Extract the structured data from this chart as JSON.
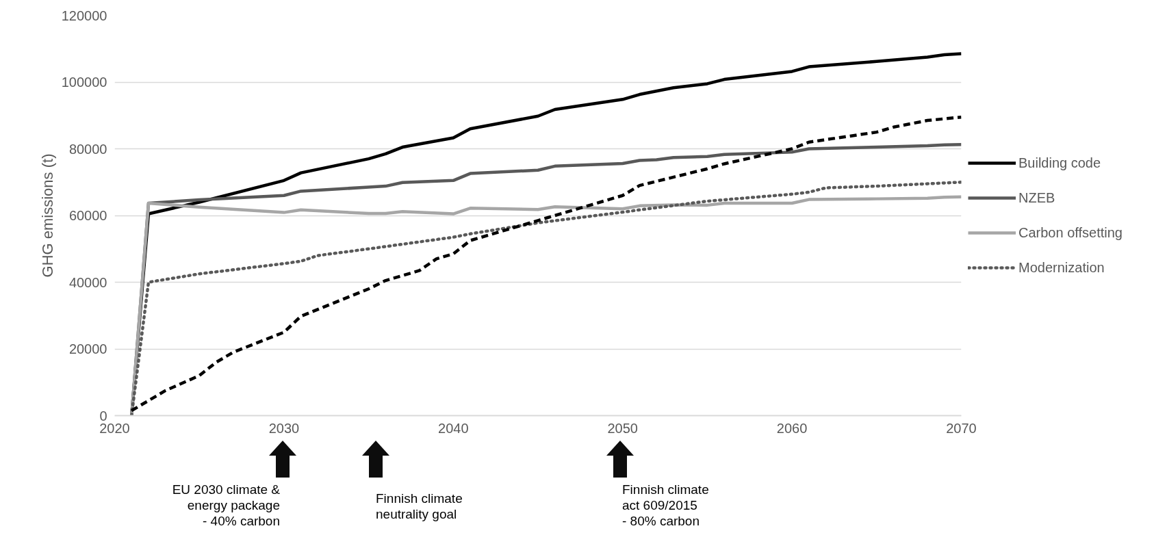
{
  "chart_data": {
    "type": "line",
    "ylabel": "GHG emissions (t)",
    "xlim": [
      2020,
      2070
    ],
    "xticks": [
      2020,
      2030,
      2040,
      2050,
      2060,
      2070
    ],
    "ylim": [
      0,
      120000
    ],
    "yticks": [
      0,
      20000,
      40000,
      60000,
      80000,
      100000,
      120000
    ],
    "grid": "y",
    "legend": "right",
    "marker": "none",
    "series": [
      {
        "name": "Building code",
        "color": "#000000",
        "line_style": "solid",
        "x": [
          2021,
          2022,
          2025,
          2030,
          2031,
          2035,
          2036,
          2037,
          2040,
          2041,
          2045,
          2046,
          2050,
          2051,
          2053,
          2055,
          2056,
          2060,
          2061,
          2065,
          2068,
          2069,
          2070
        ],
        "values": [
          0,
          60500,
          64000,
          70500,
          72800,
          77000,
          78500,
          80500,
          83300,
          86000,
          89800,
          91800,
          94800,
          96300,
          98300,
          99500,
          100800,
          103200,
          104600,
          106200,
          107500,
          108200,
          108500
        ]
      },
      {
        "name": "NZEB",
        "color": "#595959",
        "line_style": "solid",
        "x": [
          2021,
          2022,
          2025,
          2030,
          2031,
          2035,
          2036,
          2037,
          2040,
          2041,
          2045,
          2046,
          2050,
          2051,
          2052,
          2053,
          2055,
          2056,
          2060,
          2061,
          2065,
          2068,
          2069,
          2070
        ],
        "values": [
          0,
          63700,
          64700,
          66000,
          67300,
          68500,
          68800,
          69900,
          70500,
          72600,
          73600,
          74800,
          75600,
          76500,
          76700,
          77400,
          77700,
          78300,
          79000,
          80000,
          80500,
          80900,
          81200,
          81300
        ]
      },
      {
        "name": "Carbon offsetting",
        "color": "#a6a6a6",
        "line_style": "solid",
        "x": [
          2021,
          2022,
          2025,
          2030,
          2031,
          2035,
          2036,
          2037,
          2040,
          2041,
          2045,
          2046,
          2050,
          2051,
          2053,
          2055,
          2056,
          2060,
          2061,
          2065,
          2068,
          2069,
          2070
        ],
        "values": [
          0,
          63700,
          62500,
          60900,
          61700,
          60600,
          60600,
          61200,
          60500,
          62200,
          61800,
          62600,
          62000,
          62900,
          63200,
          63100,
          63700,
          63700,
          64800,
          65000,
          65200,
          65500,
          65600
        ]
      },
      {
        "name": "Modernization",
        "color": "#595959",
        "line_style": "dotted",
        "x": [
          2021,
          2022,
          2025,
          2030,
          2031,
          2032,
          2035,
          2040,
          2041,
          2045,
          2050,
          2051,
          2055,
          2060,
          2061,
          2062,
          2065,
          2070
        ],
        "values": [
          0,
          40000,
          42500,
          45600,
          46300,
          48000,
          50000,
          53500,
          54500,
          57800,
          61000,
          61700,
          64300,
          66400,
          67000,
          68300,
          68800,
          70000
        ]
      },
      {
        "color": "#000000",
        "line_style": "dashed",
        "x": [
          2021,
          2022,
          2023,
          2025,
          2026,
          2027,
          2030,
          2031,
          2035,
          2036,
          2038,
          2039,
          2040,
          2041,
          2045,
          2050,
          2051,
          2055,
          2056,
          2060,
          2061,
          2065,
          2066,
          2068,
          2070
        ],
        "values": [
          1500,
          4500,
          7500,
          12000,
          16000,
          19000,
          25000,
          29800,
          38000,
          40500,
          43500,
          47000,
          48500,
          52500,
          58500,
          66000,
          69000,
          74000,
          75500,
          80000,
          82000,
          85000,
          86500,
          88500,
          89500
        ]
      }
    ],
    "annotations": [
      "EU 2030 climate &\nenergy package\n- 40% carbon",
      "Finnish climate\nneutrality goal",
      "Finnish climate\nact 609/2015\n- 80% carbon"
    ]
  }
}
